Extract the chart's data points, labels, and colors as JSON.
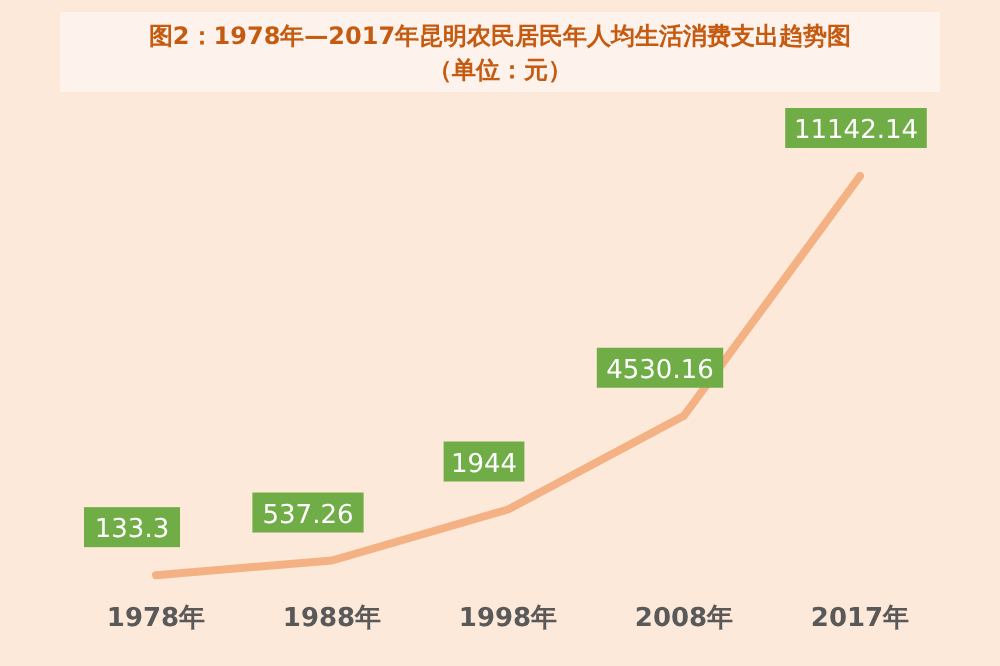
{
  "chart_data": {
    "type": "line",
    "title": "图2：1978年—2017年昆明农民居民年人均生活消费支出趋势图",
    "subtitle": "（单位：元）",
    "categories": [
      "1978年",
      "1988年",
      "1998年",
      "2008年",
      "2017年"
    ],
    "series": [
      {
        "color": "#f4b183",
        "values": [
          133.3,
          537.26,
          1944,
          4530.16,
          11142.14
        ]
      }
    ],
    "data_labels": true,
    "marker": "none",
    "line_style": "solid",
    "grid": false
  }
}
